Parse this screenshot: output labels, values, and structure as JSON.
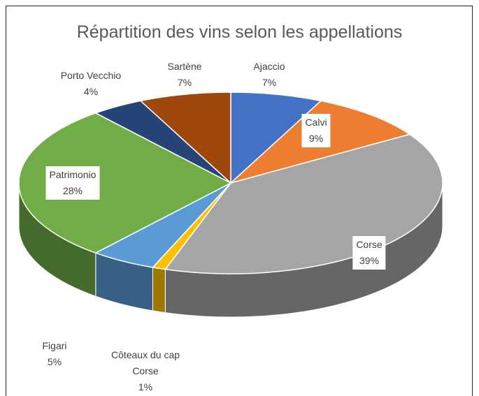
{
  "chart_data": {
    "type": "pie",
    "title": "Répartition des vins selon les appellations",
    "categories": [
      "Ajaccio",
      "Calvi",
      "Corse",
      "Côteaux du cap Corse",
      "Figari",
      "Patrimonio",
      "Porto Vecchio",
      "Sartène"
    ],
    "values": [
      7,
      9,
      39,
      1,
      5,
      28,
      4,
      7
    ],
    "value_labels": [
      "7%",
      "9%",
      "39%",
      "1%",
      "5%",
      "28%",
      "4%",
      "7%"
    ],
    "colors": [
      "#4472c4",
      "#ed7d31",
      "#a5a5a5",
      "#ffc000",
      "#5b9bd5",
      "#70ad47",
      "#264478",
      "#9e480e"
    ]
  }
}
